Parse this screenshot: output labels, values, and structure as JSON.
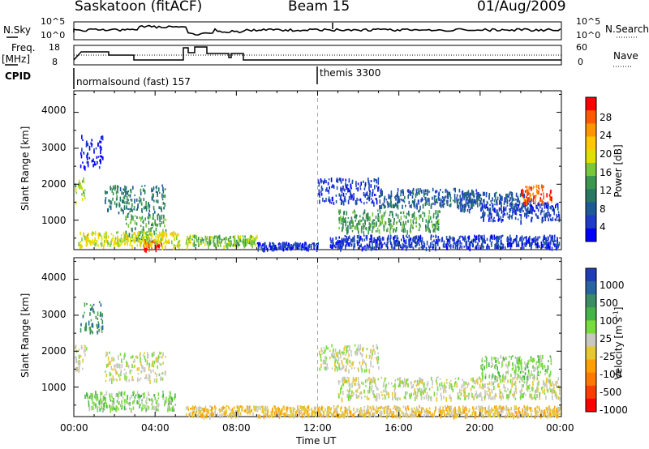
{
  "header": {
    "station": "Saskatoon (fitACF)",
    "beam": "Beam 15",
    "date": "01/Aug/2009"
  },
  "params": {
    "nsky_label": "N.Sky",
    "nsky_ticks": [
      "10^5",
      "10^0"
    ],
    "nsearch_label": "N.Search",
    "nsearch_ticks": [
      "10^5",
      "10^0"
    ],
    "freq_label": "Freq.",
    "freq_unit": "[MHz]",
    "freq_ticks": [
      "18",
      "8"
    ],
    "nave_label": "Nave",
    "nave_ticks": [
      "60",
      "0"
    ],
    "cpid_label": "CPID",
    "cpid_modes": [
      "normalsound (fast) 157",
      "themis 3300"
    ]
  },
  "axes": {
    "xlabel": "Time UT",
    "xticks": [
      "00:00",
      "04:00",
      "08:00",
      "12:00",
      "16:00",
      "20:00",
      "00:00"
    ],
    "ylabel": "Slant Range [km]",
    "yticks": [
      "4000",
      "3000",
      "2000",
      "1000"
    ]
  },
  "power_scale": {
    "label": "Power [dB]",
    "ticks": [
      "28",
      "24",
      "20",
      "16",
      "12",
      "8",
      "4"
    ],
    "colors": [
      "#ff0000",
      "#ff5a00",
      "#ff9600",
      "#ffc800",
      "#e0e000",
      "#78c83c",
      "#3c9650",
      "#287864",
      "#1e5a96",
      "#1e3cc8",
      "#0000ff"
    ]
  },
  "velocity_scale": {
    "label": "Velocity [m s",
    "label_sup": "-1",
    "label_end": "]",
    "ticks": [
      "1000",
      "500",
      "100",
      "25",
      "-25",
      "-100",
      "-500",
      "-1000"
    ],
    "colors": [
      "#1e3cb4",
      "#2864a0",
      "#3c8c64",
      "#46b446",
      "#78dc3c",
      "#c8c8c0",
      "#e6c832",
      "#ffa000",
      "#ff7800",
      "#ff3c00",
      "#ff0000"
    ]
  },
  "chart_data": [
    {
      "type": "heatmap",
      "title": "Power",
      "x_range_hours": [
        0,
        24
      ],
      "ylim_km": [
        180,
        4600
      ],
      "regions": [
        {
          "t": [
            0.3,
            1.4
          ],
          "r": [
            2500,
            3400
          ],
          "level": 10
        },
        {
          "t": [
            0.0,
            0.6
          ],
          "r": [
            1500,
            2200
          ],
          "level": 5
        },
        {
          "t": [
            1.5,
            4.5
          ],
          "r": [
            1200,
            2000
          ],
          "level": 7
        },
        {
          "t": [
            2.5,
            4.5
          ],
          "r": [
            400,
            1200
          ],
          "level": 6
        },
        {
          "t": [
            3.4,
            4.3
          ],
          "r": [
            200,
            450
          ],
          "level": 0
        },
        {
          "t": [
            0.2,
            5.2
          ],
          "r": [
            300,
            700
          ],
          "level": 4
        },
        {
          "t": [
            5.5,
            9.0
          ],
          "r": [
            300,
            600
          ],
          "level": 5
        },
        {
          "t": [
            9.0,
            12.0
          ],
          "r": [
            200,
            400
          ],
          "level": 9
        },
        {
          "t": [
            12.0,
            15.0
          ],
          "r": [
            1500,
            2200
          ],
          "level": 9
        },
        {
          "t": [
            13.0,
            18.0
          ],
          "r": [
            700,
            1300
          ],
          "level": 6
        },
        {
          "t": [
            15.0,
            20.0
          ],
          "r": [
            1400,
            1900
          ],
          "level": 8
        },
        {
          "t": [
            19.0,
            22.5
          ],
          "r": [
            1300,
            1800
          ],
          "level": 8
        },
        {
          "t": [
            22.0,
            23.5
          ],
          "r": [
            1500,
            2000
          ],
          "level": 1
        },
        {
          "t": [
            20.0,
            24.0
          ],
          "r": [
            1000,
            1500
          ],
          "level": 9
        },
        {
          "t": [
            12.5,
            24.0
          ],
          "r": [
            250,
            600
          ],
          "level": 9
        }
      ]
    },
    {
      "type": "heatmap",
      "title": "Velocity",
      "x_range_hours": [
        0,
        24
      ],
      "ylim_km": [
        180,
        4600
      ],
      "regions": [
        {
          "t": [
            0.3,
            1.4
          ],
          "r": [
            2500,
            3400
          ],
          "level": 2
        },
        {
          "t": [
            0.0,
            0.6
          ],
          "r": [
            1500,
            2200
          ],
          "level": 5
        },
        {
          "t": [
            1.5,
            4.5
          ],
          "r": [
            1200,
            2000
          ],
          "level": 5
        },
        {
          "t": [
            0.5,
            5.0
          ],
          "r": [
            400,
            900
          ],
          "level": 4
        },
        {
          "t": [
            5.5,
            12.0
          ],
          "r": [
            200,
            500
          ],
          "level": 6
        },
        {
          "t": [
            12.0,
            15.0
          ],
          "r": [
            1500,
            2200
          ],
          "level": 5
        },
        {
          "t": [
            13.0,
            24.0
          ],
          "r": [
            700,
            1300
          ],
          "level": 5
        },
        {
          "t": [
            20.0,
            23.5
          ],
          "r": [
            1300,
            1900
          ],
          "level": 4
        },
        {
          "t": [
            12.0,
            24.0
          ],
          "r": [
            200,
            500
          ],
          "level": 6
        }
      ]
    }
  ]
}
